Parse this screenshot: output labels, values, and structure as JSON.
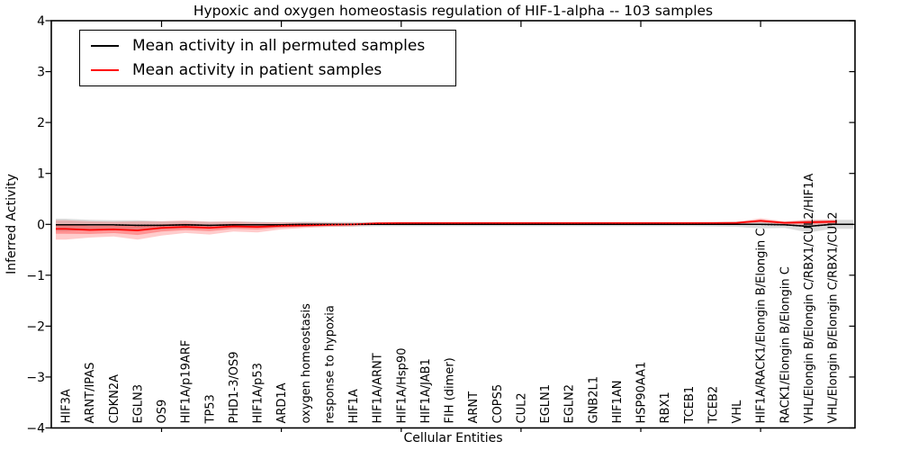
{
  "title": "Hypoxic and oxygen homeostasis regulation of HIF-1-alpha -- 103 samples",
  "axes": {
    "ylabel": "Inferred Activity",
    "xlabel": "Cellular Entities",
    "ytick_labels": [
      "4",
      "3",
      "2",
      "1",
      "0",
      "−1",
      "−2",
      "−3",
      "−4"
    ]
  },
  "legend": {
    "entries": [
      {
        "label": "Mean activity in all permuted samples",
        "color": "#000000"
      },
      {
        "label": "Mean activity in patient samples",
        "color": "#ff0000"
      }
    ]
  },
  "colors": {
    "background": "#ffffff",
    "axis": "#000000",
    "permuted_line": "#000000",
    "patient_line": "#ff0000",
    "permuted_band": "rgba(0,0,0,0.14)",
    "patient_band": "rgba(255,0,0,0.20)",
    "patient_band_inner": "rgba(255,0,0,0.28)"
  },
  "chart_data": {
    "type": "line",
    "title": "Hypoxic and oxygen homeostasis regulation of HIF-1-alpha -- 103 samples",
    "xlabel": "Cellular Entities",
    "ylabel": "Inferred Activity",
    "ylim": [
      -4,
      4
    ],
    "yticks": [
      4,
      3,
      2,
      1,
      0,
      -1,
      -2,
      -3,
      -4
    ],
    "x_major_ticks_at_category_numbers": [
      5,
      10,
      15,
      20,
      25,
      30
    ],
    "sample_count": 103,
    "grid": false,
    "legend_position": "upper left",
    "categories": [
      "HIF3A",
      "ARNT/IPAS",
      "CDKN2A",
      "EGLN3",
      "OS9",
      "HIF1A/p19ARF",
      "TP53",
      "PHD1-3/OS9",
      "HIF1A/p53",
      "ARD1A",
      "oxygen homeostasis",
      "response to hypoxia",
      "HIF1A",
      "HIF1A/ARNT",
      "HIF1A/Hsp90",
      "HIF1A/JAB1",
      "FIH (dimer)",
      "ARNT",
      "COPS5",
      "CUL2",
      "EGLN1",
      "EGLN2",
      "GNB2L1",
      "HIF1AN",
      "HSP90AA1",
      "RBX1",
      "TCEB1",
      "TCEB2",
      "VHL",
      "HIF1A/RACK1/Elongin B/Elongin C",
      "RACK1/Elongin B/Elongin C",
      "VHL/Elongin B/Elongin C/RBX1/CUL2/HIF1A",
      "VHL/Elongin B/Elongin C/RBX1/CUL2"
    ],
    "series": [
      {
        "name": "Mean activity in all permuted samples",
        "color": "#000000",
        "line_style": "solid with dotted overlay",
        "values": [
          -0.01,
          -0.01,
          -0.01,
          -0.02,
          -0.02,
          -0.01,
          -0.02,
          -0.01,
          -0.01,
          -0.01,
          0,
          0,
          0,
          0,
          0,
          0,
          0,
          0,
          0,
          0,
          0,
          0,
          0,
          0,
          0,
          0,
          0,
          0,
          0,
          0,
          -0.01,
          -0.04,
          0
        ],
        "band_halfwidth": [
          0.12,
          0.1,
          0.09,
          0.1,
          0.08,
          0.07,
          0.07,
          0.06,
          0.06,
          0.05,
          0.05,
          0.045,
          0.045,
          0.04,
          0.04,
          0.04,
          0.04,
          0.04,
          0.04,
          0.04,
          0.04,
          0.04,
          0.04,
          0.04,
          0.04,
          0.04,
          0.04,
          0.045,
          0.05,
          0.08,
          0.06,
          0.12,
          0.09
        ]
      },
      {
        "name": "Mean activity in patient samples",
        "color": "#ff0000",
        "line_style": "solid",
        "values": [
          -0.09,
          -0.11,
          -0.1,
          -0.12,
          -0.07,
          -0.05,
          -0.07,
          -0.04,
          -0.05,
          -0.03,
          -0.02,
          -0.01,
          0,
          0.02,
          0.025,
          0.025,
          0.025,
          0.025,
          0.025,
          0.025,
          0.025,
          0.025,
          0.025,
          0.025,
          0.025,
          0.025,
          0.025,
          0.025,
          0.03,
          0.07,
          0.03,
          0.04,
          0.05
        ],
        "band_lower": [
          -0.3,
          -0.26,
          -0.24,
          -0.3,
          -0.22,
          -0.17,
          -0.2,
          -0.14,
          -0.16,
          -0.1,
          -0.07,
          -0.05,
          -0.04,
          -0.01,
          0,
          0,
          0,
          0,
          0,
          0,
          0,
          0,
          0,
          0,
          0,
          0,
          0,
          0,
          0.005,
          0.03,
          -0.01,
          -0.02,
          0.01
        ],
        "band_upper": [
          0.08,
          0.06,
          0.05,
          0.06,
          0.06,
          0.08,
          0.05,
          0.06,
          0.04,
          0.04,
          0.035,
          0.03,
          0.03,
          0.04,
          0.045,
          0.045,
          0.045,
          0.045,
          0.045,
          0.045,
          0.045,
          0.045,
          0.045,
          0.045,
          0.045,
          0.045,
          0.045,
          0.045,
          0.05,
          0.12,
          0.06,
          0.09,
          0.09
        ]
      }
    ]
  }
}
